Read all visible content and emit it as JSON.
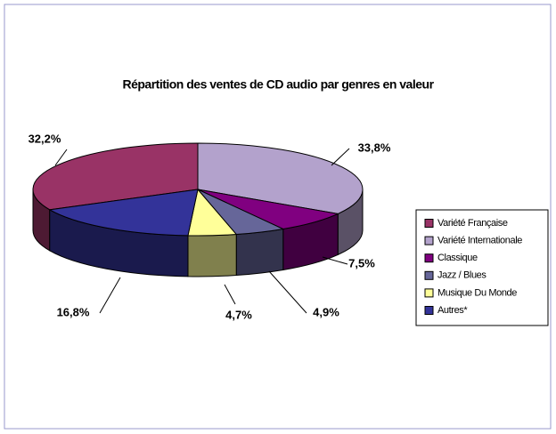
{
  "chart_data": {
    "type": "pie",
    "title": "Répartition des ventes de CD audio par genres en valeur",
    "categories": [
      "Variété Française",
      "Variété Internationale",
      "Classique",
      "Jazz / Blues",
      "Musique Du Monde",
      "Autres*"
    ],
    "values": [
      32.2,
      33.8,
      7.5,
      4.9,
      4.7,
      16.8
    ],
    "value_labels": [
      "32,2%",
      "33,8%",
      "7,5%",
      "4,9%",
      "4,7%",
      "16,8%"
    ],
    "colors": [
      "#993366",
      "#b3a2cc",
      "#800080",
      "#666699",
      "#ffff99",
      "#333399"
    ],
    "legend": "right"
  }
}
